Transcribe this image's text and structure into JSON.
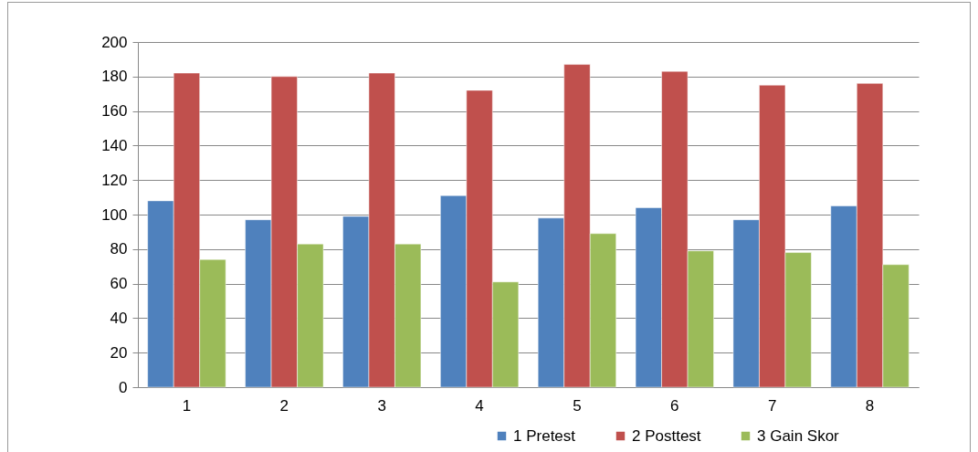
{
  "chart_data": {
    "type": "bar",
    "categories": [
      "1",
      "2",
      "3",
      "4",
      "5",
      "6",
      "7",
      "8"
    ],
    "series": [
      {
        "name": "1 Pretest",
        "color": "#4f81bd",
        "values": [
          108,
          97,
          99,
          111,
          98,
          104,
          97,
          105
        ]
      },
      {
        "name": "2 Posttest",
        "color": "#c0504d",
        "values": [
          182,
          180,
          182,
          172,
          187,
          183,
          175,
          176
        ]
      },
      {
        "name": "3 Gain Skor",
        "color": "#9bbb59",
        "values": [
          74,
          83,
          83,
          61,
          89,
          79,
          78,
          71
        ]
      }
    ],
    "ylim": [
      0,
      200
    ],
    "yticks": [
      0,
      20,
      40,
      60,
      80,
      100,
      120,
      140,
      160,
      180,
      200
    ],
    "grid": "y",
    "legend": "bottom right"
  }
}
